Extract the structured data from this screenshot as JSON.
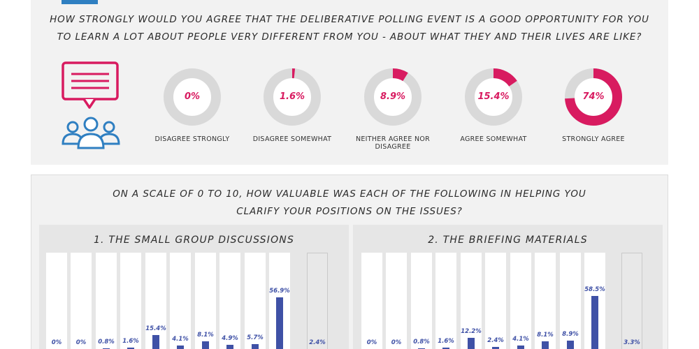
{
  "question_1": {
    "line_1": "How strongly would you agree that the deliberative polling event is a good opportunity for you",
    "line_2": "to learn a lot about people very different from you - about what they and their lives are like?"
  },
  "colors": {
    "accent": "#d81b60",
    "ring_bg": "#d9d9d9",
    "bar": "#3f51a6",
    "icon": "#2f7fc1",
    "speech_icon": "#d81b60"
  },
  "illustration": {
    "icons": [
      "speech-bubble-icon",
      "people-group-icon"
    ]
  },
  "question_2": {
    "line_1": "On a scale of 0 to 10, how valuable was each of the following in helping you",
    "line_2": "clarify your positions on the issues?"
  },
  "chart_data": [
    {
      "type": "pie",
      "title": "How strongly would you agree that the deliberative polling event is a good opportunity for you to learn a lot about people very different from you - about what they and their lives are like?",
      "categories": [
        "Disagree strongly",
        "Disagree somewhat",
        "Neither agree nor disagree",
        "Agree somewhat",
        "Strongly agree"
      ],
      "values": [
        0,
        1.6,
        8.9,
        15.4,
        74
      ],
      "labels": [
        "0%",
        "1.6%",
        "8.9%",
        "15.4%",
        "74%"
      ]
    },
    {
      "type": "bar",
      "title": "1. The small group discussions",
      "values": [
        0,
        0,
        0.8,
        1.6,
        15.4,
        4.1,
        8.1,
        4.9,
        5.7,
        56.9,
        2.4
      ],
      "labels": [
        "0%",
        "0%",
        "0.8%",
        "1.6%",
        "15.4%",
        "4.1%",
        "8.1%",
        "4.9%",
        "5.7%",
        "56.9%",
        "2.4%"
      ]
    },
    {
      "type": "bar",
      "title": "2. The briefing materials",
      "values": [
        0,
        0,
        0.8,
        1.6,
        12.2,
        2.4,
        4.1,
        8.1,
        8.9,
        58.5,
        3.3
      ],
      "labels": [
        "0%",
        "0%",
        "0.8%",
        "1.6%",
        "12.2%",
        "2.4%",
        "4.1%",
        "8.1%",
        "8.9%",
        "58.5%",
        "3.3%"
      ]
    }
  ]
}
